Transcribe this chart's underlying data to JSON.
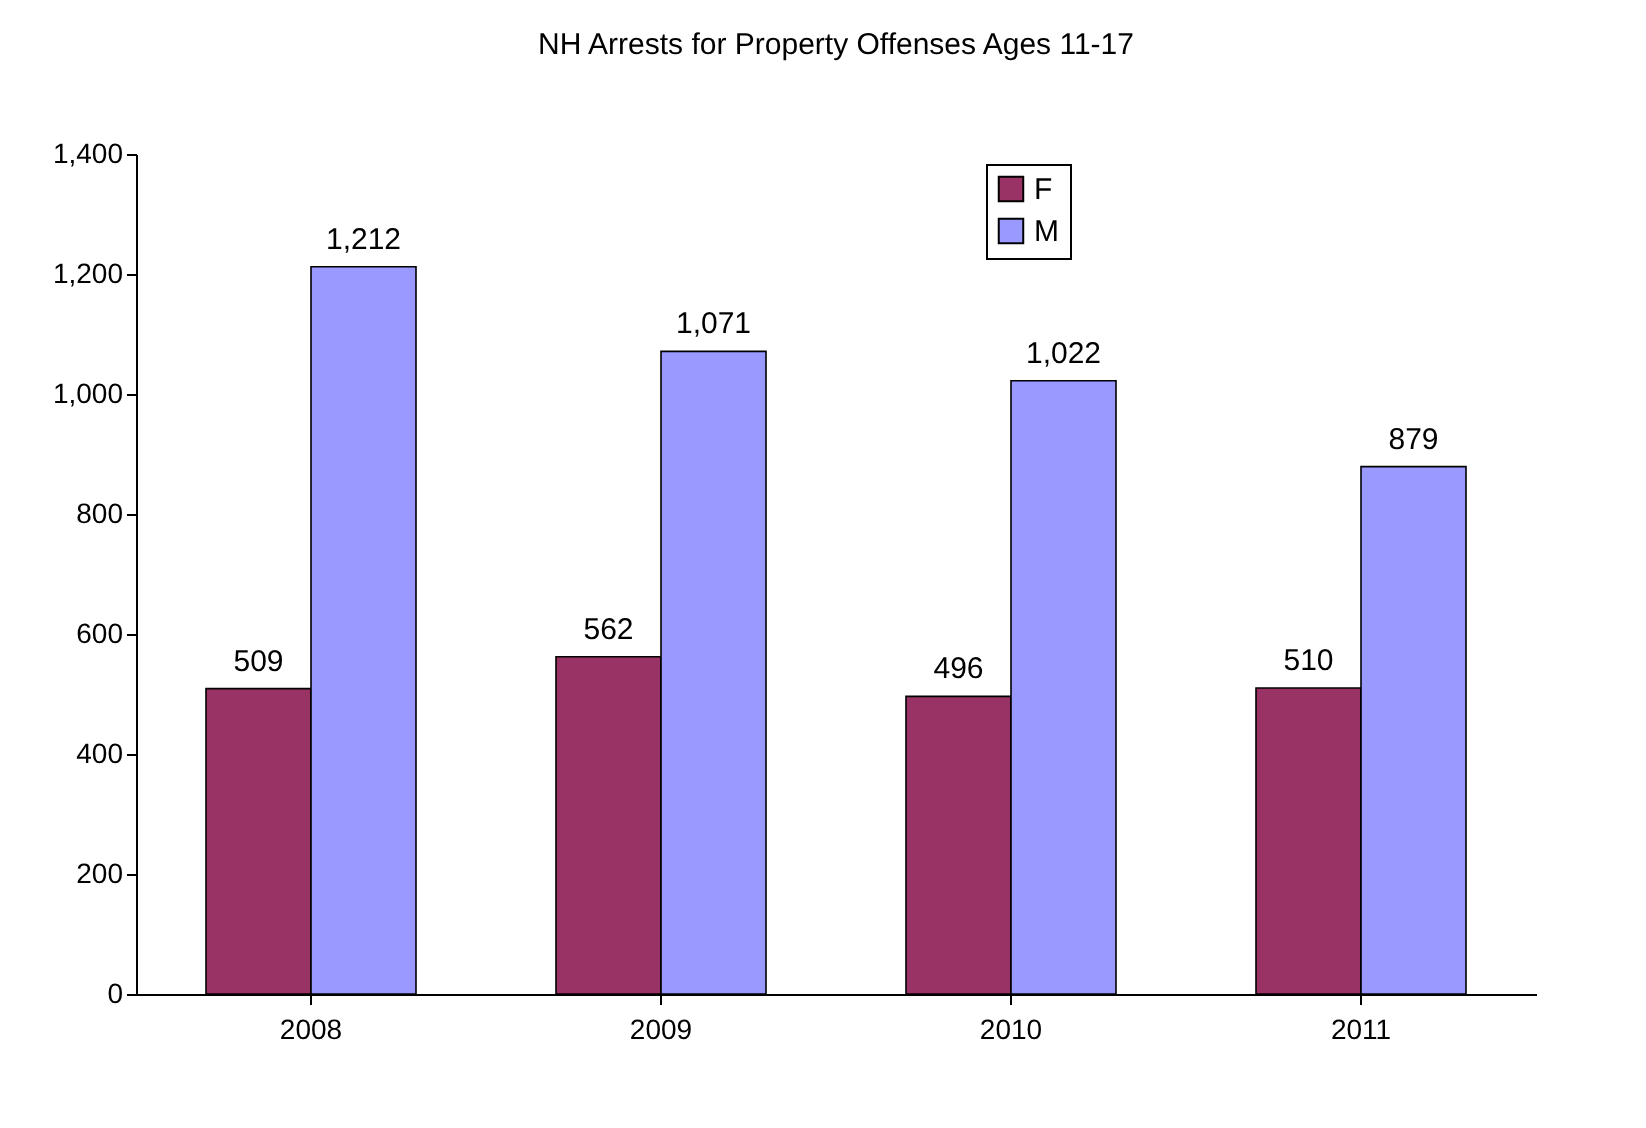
{
  "chart_data": {
    "type": "bar",
    "title": "NH Arrests for Property Offenses Ages 11-17",
    "categories": [
      "2008",
      "2009",
      "2010",
      "2011"
    ],
    "series": [
      {
        "name": "F",
        "color": "#993366",
        "values": [
          509,
          562,
          496,
          510
        ],
        "value_labels": [
          "509",
          "562",
          "496",
          "510"
        ]
      },
      {
        "name": "M",
        "color": "#9999ff",
        "values": [
          1212,
          1071,
          1022,
          879
        ],
        "value_labels": [
          "1,212",
          "1,071",
          "1,022",
          "879"
        ]
      }
    ],
    "ylim": [
      0,
      1400
    ],
    "yticks": [
      {
        "value": 0,
        "label": "0"
      },
      {
        "value": 200,
        "label": "200"
      },
      {
        "value": 400,
        "label": "400"
      },
      {
        "value": 600,
        "label": "600"
      },
      {
        "value": 800,
        "label": "800"
      },
      {
        "value": 1000,
        "label": "1,000"
      },
      {
        "value": 1200,
        "label": "1,200"
      },
      {
        "value": 1400,
        "label": "1,400"
      }
    ],
    "grid": false,
    "legend": "top right"
  }
}
